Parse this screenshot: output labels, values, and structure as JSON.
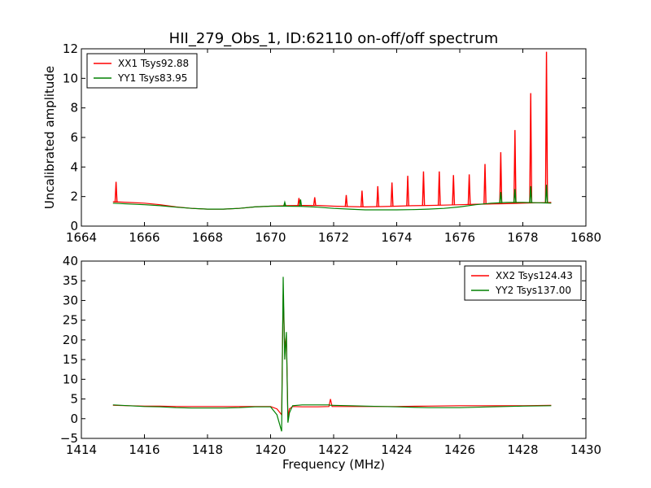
{
  "title": "HII_279_Obs_1, ID:62110 on-off/off spectrum",
  "colors": {
    "xx": "#ff0000",
    "yy": "#008000"
  },
  "chart_data": [
    {
      "type": "line",
      "ylabel": "Uncalibrated amplitude",
      "xlabel": "",
      "xlim": [
        1664,
        1680
      ],
      "ylim": [
        0,
        12
      ],
      "xticks": [
        "1664",
        "1666",
        "1668",
        "1670",
        "1672",
        "1674",
        "1676",
        "1678",
        "1680"
      ],
      "yticks": [
        "0",
        "2",
        "4",
        "6",
        "8",
        "10",
        "12"
      ],
      "legend_position": "top-left",
      "x": [
        1665.0,
        1665.5,
        1666.0,
        1666.5,
        1667.0,
        1667.5,
        1668.0,
        1668.5,
        1669.0,
        1669.5,
        1670.0,
        1670.5,
        1671.0,
        1671.5,
        1672.0,
        1672.5,
        1673.0,
        1673.5,
        1674.0,
        1674.5,
        1675.0,
        1675.5,
        1676.0,
        1676.5,
        1677.0,
        1677.5,
        1678.0,
        1678.5,
        1678.9
      ],
      "series": [
        {
          "name": "XX1 Tsys92.88",
          "color": "#ff0000",
          "values": [
            1.65,
            1.6,
            1.55,
            1.45,
            1.3,
            1.2,
            1.15,
            1.15,
            1.2,
            1.3,
            1.35,
            1.38,
            1.4,
            1.4,
            1.35,
            1.32,
            1.3,
            1.32,
            1.35,
            1.38,
            1.4,
            1.42,
            1.45,
            1.48,
            1.5,
            1.52,
            1.55,
            1.58,
            1.6
          ],
          "spikes": [
            {
              "x": 1665.1,
              "y": 3.0
            },
            {
              "x": 1670.9,
              "y": 1.9
            },
            {
              "x": 1671.4,
              "y": 1.95
            },
            {
              "x": 1672.4,
              "y": 2.1
            },
            {
              "x": 1672.9,
              "y": 2.4
            },
            {
              "x": 1673.4,
              "y": 2.7
            },
            {
              "x": 1673.85,
              "y": 2.95
            },
            {
              "x": 1674.35,
              "y": 3.4
            },
            {
              "x": 1674.85,
              "y": 3.7
            },
            {
              "x": 1675.35,
              "y": 3.7
            },
            {
              "x": 1675.8,
              "y": 3.45
            },
            {
              "x": 1676.3,
              "y": 3.5
            },
            {
              "x": 1676.8,
              "y": 4.2
            },
            {
              "x": 1677.3,
              "y": 5.0
            },
            {
              "x": 1677.75,
              "y": 6.5
            },
            {
              "x": 1678.25,
              "y": 9.0
            },
            {
              "x": 1678.75,
              "y": 11.8
            }
          ]
        },
        {
          "name": "YY1 Tsys83.95",
          "color": "#008000",
          "values": [
            1.55,
            1.5,
            1.45,
            1.38,
            1.28,
            1.2,
            1.15,
            1.15,
            1.2,
            1.3,
            1.35,
            1.35,
            1.33,
            1.28,
            1.2,
            1.15,
            1.1,
            1.1,
            1.1,
            1.12,
            1.15,
            1.2,
            1.3,
            1.45,
            1.55,
            1.6,
            1.6,
            1.58,
            1.55
          ],
          "spikes": [
            {
              "x": 1670.45,
              "y": 1.6
            },
            {
              "x": 1670.95,
              "y": 1.8
            },
            {
              "x": 1677.3,
              "y": 2.3
            },
            {
              "x": 1677.75,
              "y": 2.5
            },
            {
              "x": 1678.25,
              "y": 2.7
            },
            {
              "x": 1678.75,
              "y": 2.8
            }
          ]
        }
      ]
    },
    {
      "type": "line",
      "ylabel": "",
      "xlabel": "Frequency (MHz)",
      "xlim": [
        1414,
        1430
      ],
      "ylim": [
        -5,
        40
      ],
      "xticks": [
        "1414",
        "1416",
        "1418",
        "1420",
        "1422",
        "1424",
        "1426",
        "1428",
        "1430"
      ],
      "yticks": [
        "−5",
        "0",
        "5",
        "10",
        "15",
        "20",
        "25",
        "30",
        "35",
        "40"
      ],
      "legend_position": "top-right",
      "x": [
        1415.0,
        1415.5,
        1416.0,
        1416.5,
        1417.0,
        1417.5,
        1418.0,
        1418.5,
        1419.0,
        1419.5,
        1420.0,
        1420.2,
        1420.35,
        1420.4,
        1420.45,
        1420.5,
        1420.55,
        1420.6,
        1420.7,
        1421.0,
        1421.5,
        1421.85,
        1421.9,
        1421.95,
        1422.5,
        1423.0,
        1424.0,
        1425.0,
        1426.0,
        1427.0,
        1428.0,
        1428.9
      ],
      "series": [
        {
          "name": "XX2 Tsys124.43",
          "color": "#ff0000",
          "values": [
            3.4,
            3.3,
            3.2,
            3.2,
            3.1,
            3.1,
            3.1,
            3.1,
            3.1,
            3.1,
            3.1,
            2.5,
            1.0,
            31.5,
            18.0,
            21.0,
            0.5,
            2.5,
            3.1,
            3.0,
            3.0,
            3.1,
            5.0,
            3.1,
            3.1,
            3.1,
            3.1,
            3.2,
            3.3,
            3.3,
            3.3,
            3.4
          ],
          "spikes": []
        },
        {
          "name": "YY2 Tsys137.00",
          "color": "#008000",
          "values": [
            3.5,
            3.3,
            3.1,
            3.0,
            2.8,
            2.7,
            2.7,
            2.7,
            2.8,
            3.0,
            3.0,
            1.0,
            -3.2,
            36.0,
            15.0,
            22.0,
            -1.0,
            1.5,
            3.3,
            3.5,
            3.5,
            3.5,
            3.4,
            3.4,
            3.3,
            3.2,
            3.0,
            2.8,
            2.8,
            3.0,
            3.2,
            3.3
          ],
          "spikes": []
        }
      ]
    }
  ]
}
